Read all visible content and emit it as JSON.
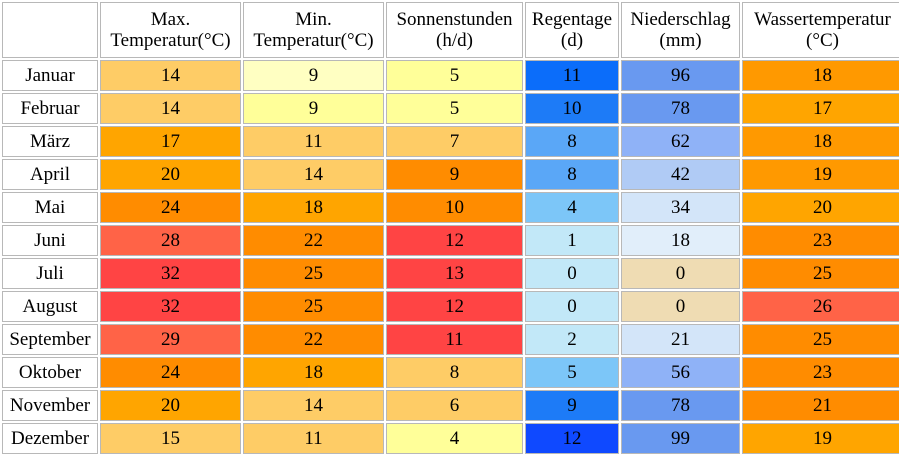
{
  "columns": [
    {
      "line1": "Max.",
      "line2": "Temperatur(°C)"
    },
    {
      "line1": "Min.",
      "line2": "Temperatur(°C)"
    },
    {
      "line1": "Sonnenstunden",
      "line2": "(h/d)"
    },
    {
      "line1": "Regentage",
      "line2": "(d)"
    },
    {
      "line1": "Niederschlag",
      "line2": "(mm)"
    },
    {
      "line1": "Wassertemperatur",
      "line2": "(°C)"
    }
  ],
  "rows": [
    {
      "month": "Januar",
      "values": [
        "14",
        "9",
        "5",
        "11",
        "96",
        "18"
      ],
      "colors": [
        "#fecc66",
        "#ffffc2",
        "#ffff99",
        "#0b6dfa",
        "#6999f0",
        "#ff9900"
      ]
    },
    {
      "month": "Februar",
      "values": [
        "14",
        "9",
        "5",
        "10",
        "78",
        "17"
      ],
      "colors": [
        "#fecc66",
        "#ffff99",
        "#ffff99",
        "#1d7bf7",
        "#6999f0",
        "#ffa500"
      ]
    },
    {
      "month": "März",
      "values": [
        "17",
        "11",
        "7",
        "8",
        "62",
        "18"
      ],
      "colors": [
        "#ffa500",
        "#fecc66",
        "#fecc66",
        "#5aa7f7",
        "#8fb2f7",
        "#ff9900"
      ]
    },
    {
      "month": "April",
      "values": [
        "20",
        "14",
        "9",
        "8",
        "42",
        "19"
      ],
      "colors": [
        "#ffa500",
        "#fecc66",
        "#ff8c00",
        "#5aa7f7",
        "#b0cbf5",
        "#ff9900"
      ]
    },
    {
      "month": "Mai",
      "values": [
        "24",
        "18",
        "10",
        "4",
        "34",
        "20"
      ],
      "colors": [
        "#ff8c00",
        "#ffa500",
        "#ff8c00",
        "#7cc6f8",
        "#d3e5f9",
        "#ffa500"
      ]
    },
    {
      "month": "Juni",
      "values": [
        "28",
        "22",
        "12",
        "1",
        "18",
        "23"
      ],
      "colors": [
        "#ff6347",
        "#ff8c00",
        "#ff4444",
        "#c2e8f8",
        "#e1eefa",
        "#ff8c00"
      ]
    },
    {
      "month": "Juli",
      "values": [
        "32",
        "25",
        "13",
        "0",
        "0",
        "25"
      ],
      "colors": [
        "#ff4444",
        "#ff8c00",
        "#ff4444",
        "#c2e8f8",
        "#efdcb3",
        "#ff8c00"
      ]
    },
    {
      "month": "August",
      "values": [
        "32",
        "25",
        "12",
        "0",
        "0",
        "26"
      ],
      "colors": [
        "#ff4444",
        "#ff8c00",
        "#ff4444",
        "#c2e8f8",
        "#efdcb3",
        "#ff6347"
      ]
    },
    {
      "month": "September",
      "values": [
        "29",
        "22",
        "11",
        "2",
        "21",
        "25"
      ],
      "colors": [
        "#ff6347",
        "#ff8c00",
        "#ff4444",
        "#c2e8f8",
        "#d3e5f9",
        "#ff8c00"
      ]
    },
    {
      "month": "Oktober",
      "values": [
        "24",
        "18",
        "8",
        "5",
        "56",
        "23"
      ],
      "colors": [
        "#ff8c00",
        "#ffa500",
        "#fecc66",
        "#7cc6f8",
        "#8fb2f7",
        "#ff8c00"
      ]
    },
    {
      "month": "November",
      "values": [
        "20",
        "14",
        "6",
        "9",
        "78",
        "21"
      ],
      "colors": [
        "#ffa500",
        "#fecc66",
        "#fecc66",
        "#1d7bf7",
        "#6999f0",
        "#ff8c00"
      ]
    },
    {
      "month": "Dezember",
      "values": [
        "15",
        "11",
        "4",
        "12",
        "99",
        "19"
      ],
      "colors": [
        "#fecc66",
        "#fecc66",
        "#ffff99",
        "#0f49ff",
        "#6999f0",
        "#ffa500"
      ]
    }
  ]
}
